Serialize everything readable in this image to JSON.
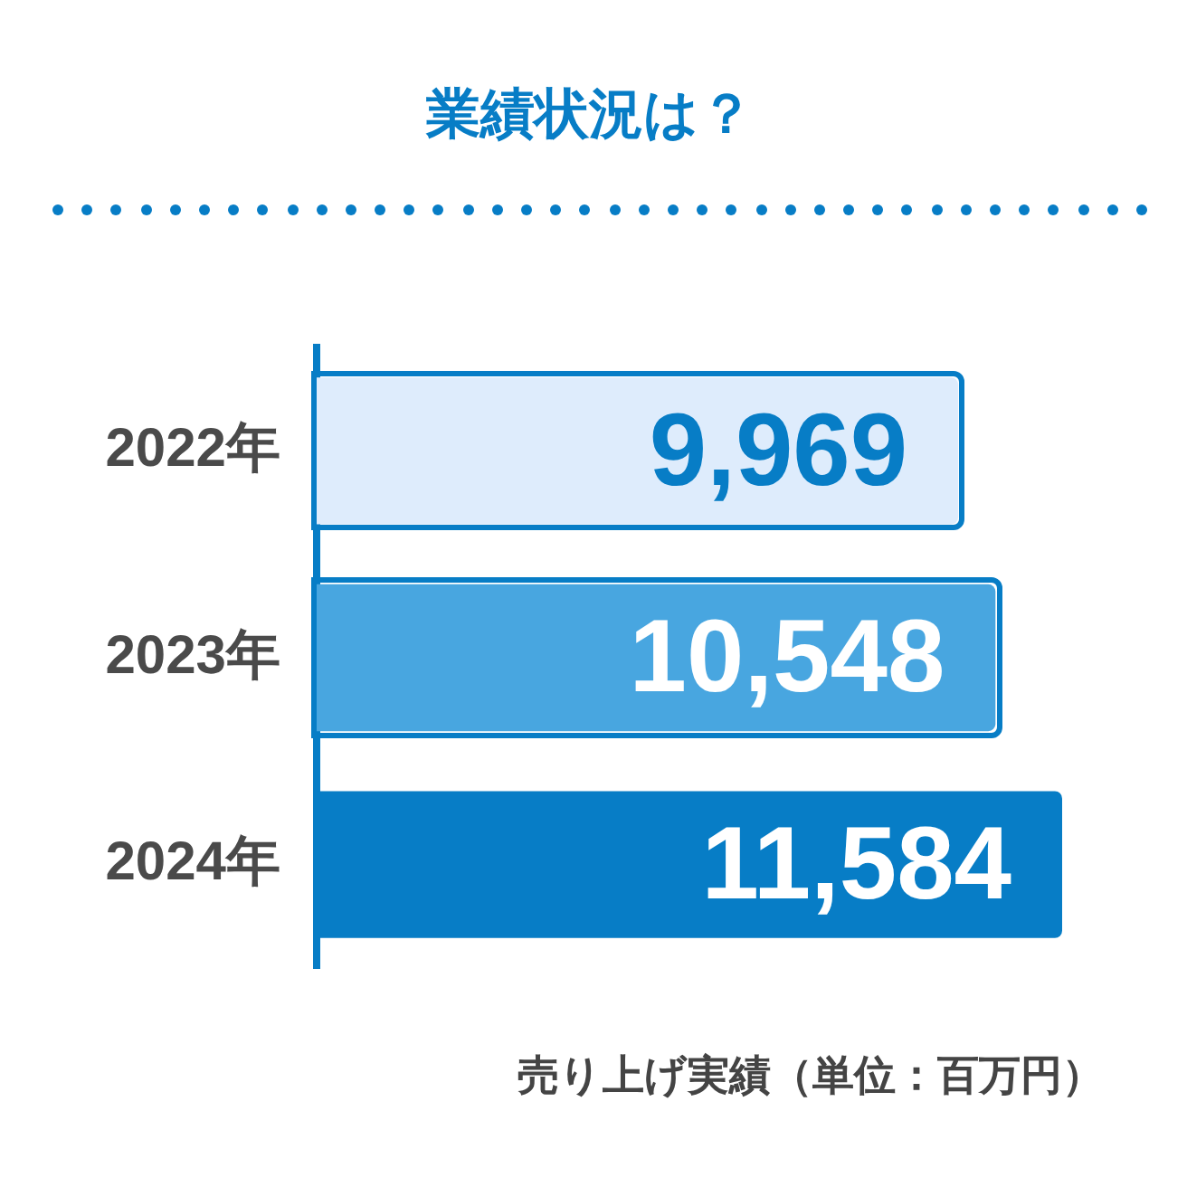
{
  "chart_data": {
    "type": "bar",
    "orientation": "horizontal",
    "title": "業績状況は？",
    "categories": [
      "2022年",
      "2023年",
      "2024年"
    ],
    "values": [
      9969,
      10548,
      11584
    ],
    "value_labels": [
      "9,969",
      "10,548",
      "11,584"
    ],
    "colors": [
      "#deecfc",
      "#48a6e0",
      "#077dc6"
    ],
    "tick_labels": "y",
    "annotations": [
      "売り上げ実績（単位：百万円）"
    ]
  }
}
